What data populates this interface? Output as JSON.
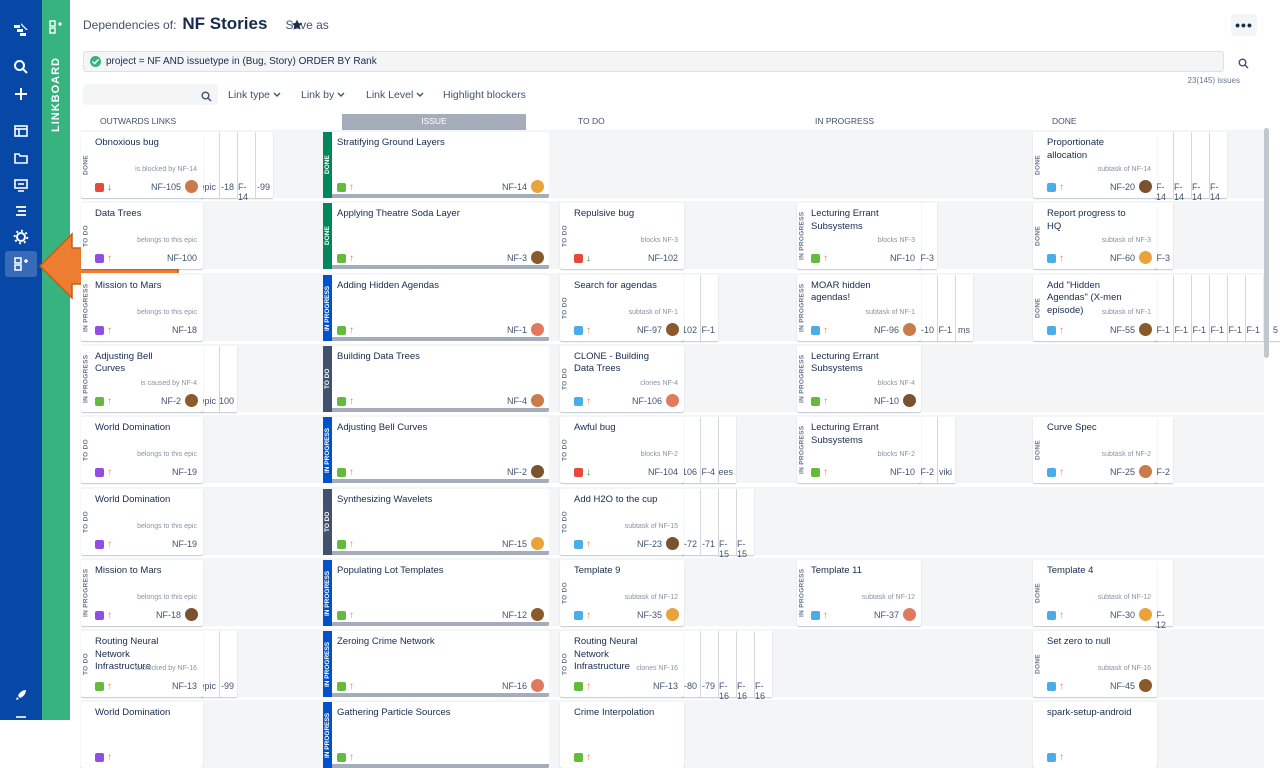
{
  "header": {
    "dependencies_label": "Dependencies of:",
    "project_name": "NF Stories",
    "save_as": "Save as"
  },
  "rail": {
    "title": "LINKBOARD"
  },
  "query": {
    "jql": "project = NF AND issuetype in (Bug, Story) ORDER BY Rank",
    "count": "23(145) issues"
  },
  "toolbar": {
    "link_type": "Link type",
    "link_by": "Link by",
    "link_level": "Link Level",
    "highlight_blockers": "Highlight blockers"
  },
  "columns": {
    "outwards": "OUTWARDS LINKS",
    "issue": "ISSUE",
    "todo": "TO DO",
    "inprogress": "IN PROGRESS",
    "done": "DONE"
  },
  "colors": {
    "sidebar": "#0747a6",
    "rail": "#36b37e",
    "arrow": "#ed7d31",
    "done": "#00875a",
    "inprogress": "#0052cc",
    "todo": "#42526e"
  },
  "rows": [
    {
      "out": {
        "status": "DONE",
        "title": "Obnoxious bug",
        "rel": "is blocked by NF-14",
        "key": "NF-105",
        "type": "bug",
        "pr": "low",
        "extra": [
          "epic",
          "-18",
          "F-14",
          "-99"
        ]
      },
      "issue": {
        "status": "DONE",
        "title": "Stratifying Ground Layers",
        "key": "NF-14",
        "type": "story",
        "pr": "high",
        "avatar": "#e8a33a"
      },
      "todo": null,
      "inprog": null,
      "done": {
        "status": "DONE",
        "title": "Proportionate allocation",
        "rel": "subtask of NF-14",
        "key": "NF-20",
        "type": "subtask",
        "pr": "high",
        "extra": [
          "F-14",
          "F-14",
          "F-14",
          "F-14"
        ]
      }
    },
    {
      "out": {
        "status": "TO DO",
        "title": "Data Trees",
        "rel": "belongs to this epic",
        "key": "NF-100",
        "type": "epic",
        "pr": "high"
      },
      "issue": {
        "status": "DONE",
        "title": "Applying Theatre Soda Layer",
        "key": "NF-3",
        "type": "story",
        "pr": "high"
      },
      "todo": {
        "status": "TO DO",
        "title": "Repulsive bug",
        "rel": "blocks NF-3",
        "key": "NF-102",
        "type": "bug",
        "pr": "low"
      },
      "inprog": {
        "status": "IN PROGRESS",
        "title": "Lecturing Errant Subsystems",
        "rel": "blocks NF-3",
        "key": "NF-10",
        "type": "story",
        "pr": "high",
        "extra": [
          "F-3"
        ]
      },
      "done": {
        "status": "DONE",
        "title": "Report progress to HQ",
        "rel": "subtask of NF-3",
        "key": "NF-60",
        "type": "subtask",
        "pr": "high",
        "extra": [
          "F-3"
        ]
      }
    },
    {
      "out": {
        "status": "IN PROGRESS",
        "title": "Mission to Mars",
        "rel": "belongs to this epic",
        "key": "NF-18",
        "type": "epic",
        "pr": "high"
      },
      "issue": {
        "status": "IN PROGRESS",
        "title": "Adding Hidden Agendas",
        "key": "NF-1",
        "type": "story",
        "pr": "high"
      },
      "todo": {
        "status": "TO DO",
        "title": "Search for agendas",
        "rel": "subtask of NF-1",
        "key": "NF-97",
        "type": "subtask",
        "pr": "high",
        "extra": [
          "102",
          "F-1"
        ]
      },
      "inprog": {
        "status": "IN PROGRESS",
        "title": "MOAR hidden agendas!",
        "rel": "subtask of NF-1",
        "key": "NF-96",
        "type": "subtask",
        "pr": "high",
        "extra": [
          "-10",
          "F-1",
          "ms"
        ]
      },
      "done": {
        "status": "DONE",
        "title": "Add \"Hidden Agendas\" (X-men episode)",
        "rel": "subtask of NF-1",
        "key": "NF-55",
        "type": "subtask",
        "pr": "high",
        "extra": [
          "F-1",
          "F-1",
          "F-1",
          "F-1",
          "F-1",
          "F-1",
          "5",
          "ug"
        ]
      }
    },
    {
      "out": {
        "status": "IN PROGRESS",
        "title": "Adjusting Bell Curves",
        "rel": "is caused by NF-4",
        "key": "NF-2",
        "type": "story",
        "pr": "high",
        "extra": [
          "epic",
          "100"
        ]
      },
      "issue": {
        "status": "TO DO",
        "title": "Building Data Trees",
        "key": "NF-4",
        "type": "story",
        "pr": "high"
      },
      "todo": {
        "status": "TO DO",
        "title": "CLONE - Building Data Trees",
        "rel": "clones NF-4",
        "key": "NF-106",
        "type": "task",
        "pr": "high"
      },
      "inprog": {
        "status": "IN PROGRESS",
        "title": "Lecturing Errant Subsystems",
        "rel": "blocks NF-4",
        "key": "NF-10",
        "type": "story",
        "pr": "high"
      },
      "done": null
    },
    {
      "out": {
        "status": "TO DO",
        "title": "World Domination",
        "rel": "belongs to this epic",
        "key": "NF-19",
        "type": "epic",
        "pr": "high"
      },
      "issue": {
        "status": "IN PROGRESS",
        "title": "Adjusting Bell Curves",
        "key": "NF-2",
        "type": "story",
        "pr": "high"
      },
      "todo": {
        "status": "TO DO",
        "title": "Awful bug",
        "rel": "blocks NF-2",
        "key": "NF-104",
        "type": "bug",
        "pr": "low",
        "extra": [
          "106",
          "F-4",
          "ees"
        ]
      },
      "inprog": {
        "status": "IN PROGRESS",
        "title": "Lecturing Errant Subsystems",
        "rel": "blocks NF-2",
        "key": "NF-10",
        "type": "story",
        "pr": "high",
        "extra": [
          "F-2",
          "viki"
        ]
      },
      "done": {
        "status": "DONE",
        "title": "Curve Spec",
        "rel": "subtask of NF-2",
        "key": "NF-25",
        "type": "subtask",
        "pr": "high",
        "extra": [
          "F-2"
        ]
      }
    },
    {
      "out": {
        "status": "TO DO",
        "title": "World Domination",
        "rel": "belongs to this epic",
        "key": "NF-19",
        "type": "epic",
        "pr": "high"
      },
      "issue": {
        "status": "TO DO",
        "title": "Synthesizing Wavelets",
        "key": "NF-15",
        "type": "story",
        "pr": "high"
      },
      "todo": {
        "status": "TO DO",
        "title": "Add H2O to the cup",
        "rel": "subtask of NF-15",
        "key": "NF-23",
        "type": "subtask",
        "pr": "high",
        "extra": [
          "-72",
          "-71",
          "F-15",
          "F-15"
        ]
      },
      "inprog": null,
      "done": null
    },
    {
      "out": {
        "status": "IN PROGRESS",
        "title": "Mission to Mars",
        "rel": "belongs to this epic",
        "key": "NF-18",
        "type": "epic",
        "pr": "high"
      },
      "issue": {
        "status": "IN PROGRESS",
        "title": "Populating Lot Templates",
        "key": "NF-12",
        "type": "story",
        "pr": "high"
      },
      "todo": {
        "status": "TO DO",
        "title": "Template 9",
        "rel": "subtask of NF-12",
        "key": "NF-35",
        "type": "subtask",
        "pr": "high"
      },
      "inprog": {
        "status": "IN PROGRESS",
        "title": "Template 11",
        "rel": "subtask of NF-12",
        "key": "NF-37",
        "type": "subtask",
        "pr": "high"
      },
      "done": {
        "status": "DONE",
        "title": "Template 4",
        "rel": "subtask of NF-12",
        "key": "NF-30",
        "type": "subtask",
        "pr": "high",
        "extra": [
          "F-12"
        ]
      }
    },
    {
      "out": {
        "status": "TO DO",
        "title": "Routing Neural Network Infrastructure",
        "rel": "is blocked by NF-16",
        "key": "NF-13",
        "type": "story",
        "pr": "high",
        "extra": [
          "epic",
          "-99"
        ]
      },
      "issue": {
        "status": "IN PROGRESS",
        "title": "Zeroing Crime Network",
        "key": "NF-16",
        "type": "story",
        "pr": "high"
      },
      "todo": {
        "status": "TO DO",
        "title": "Routing Neural Network Infrastructure",
        "rel": "clones NF-16",
        "key": "NF-13",
        "type": "story",
        "pr": "high",
        "extra": [
          "-80",
          "-79",
          "F-16",
          "F-16",
          "F-16"
        ]
      },
      "inprog": null,
      "done": {
        "status": "DONE",
        "title": "Set zero to null",
        "rel": "subtask of NF-16",
        "key": "NF-45",
        "type": "subtask",
        "pr": "high"
      }
    },
    {
      "out": {
        "status": "",
        "title": "World Domination",
        "rel": "",
        "key": "",
        "type": "epic",
        "pr": "high"
      },
      "issue": {
        "status": "IN PROGRESS",
        "title": "Gathering Particle Sources",
        "key": "",
        "type": "story",
        "pr": "high"
      },
      "todo": {
        "status": "",
        "title": "Crime Interpolation",
        "rel": "",
        "key": "",
        "type": "story",
        "pr": "high"
      },
      "inprog": null,
      "done": {
        "status": "",
        "title": "spark-setup-android",
        "rel": "",
        "key": "",
        "type": "subtask",
        "pr": "high"
      }
    }
  ]
}
